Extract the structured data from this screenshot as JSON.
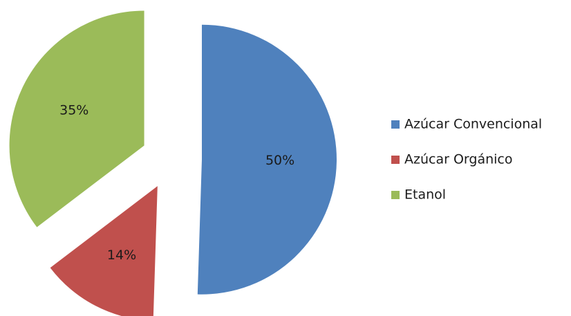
{
  "chart_data": {
    "type": "pie",
    "exploded": true,
    "start_angle_deg": 0,
    "direction": "clockwise",
    "categories": [
      "Azúcar Convencional",
      "Azúcar Orgánico",
      "Etanol"
    ],
    "values": [
      50,
      14,
      35
    ],
    "labels": [
      "50%",
      "14%",
      "35%"
    ],
    "colors": [
      "#4f81bd",
      "#c0504d",
      "#9bbb59"
    ],
    "legend_position": "right"
  }
}
